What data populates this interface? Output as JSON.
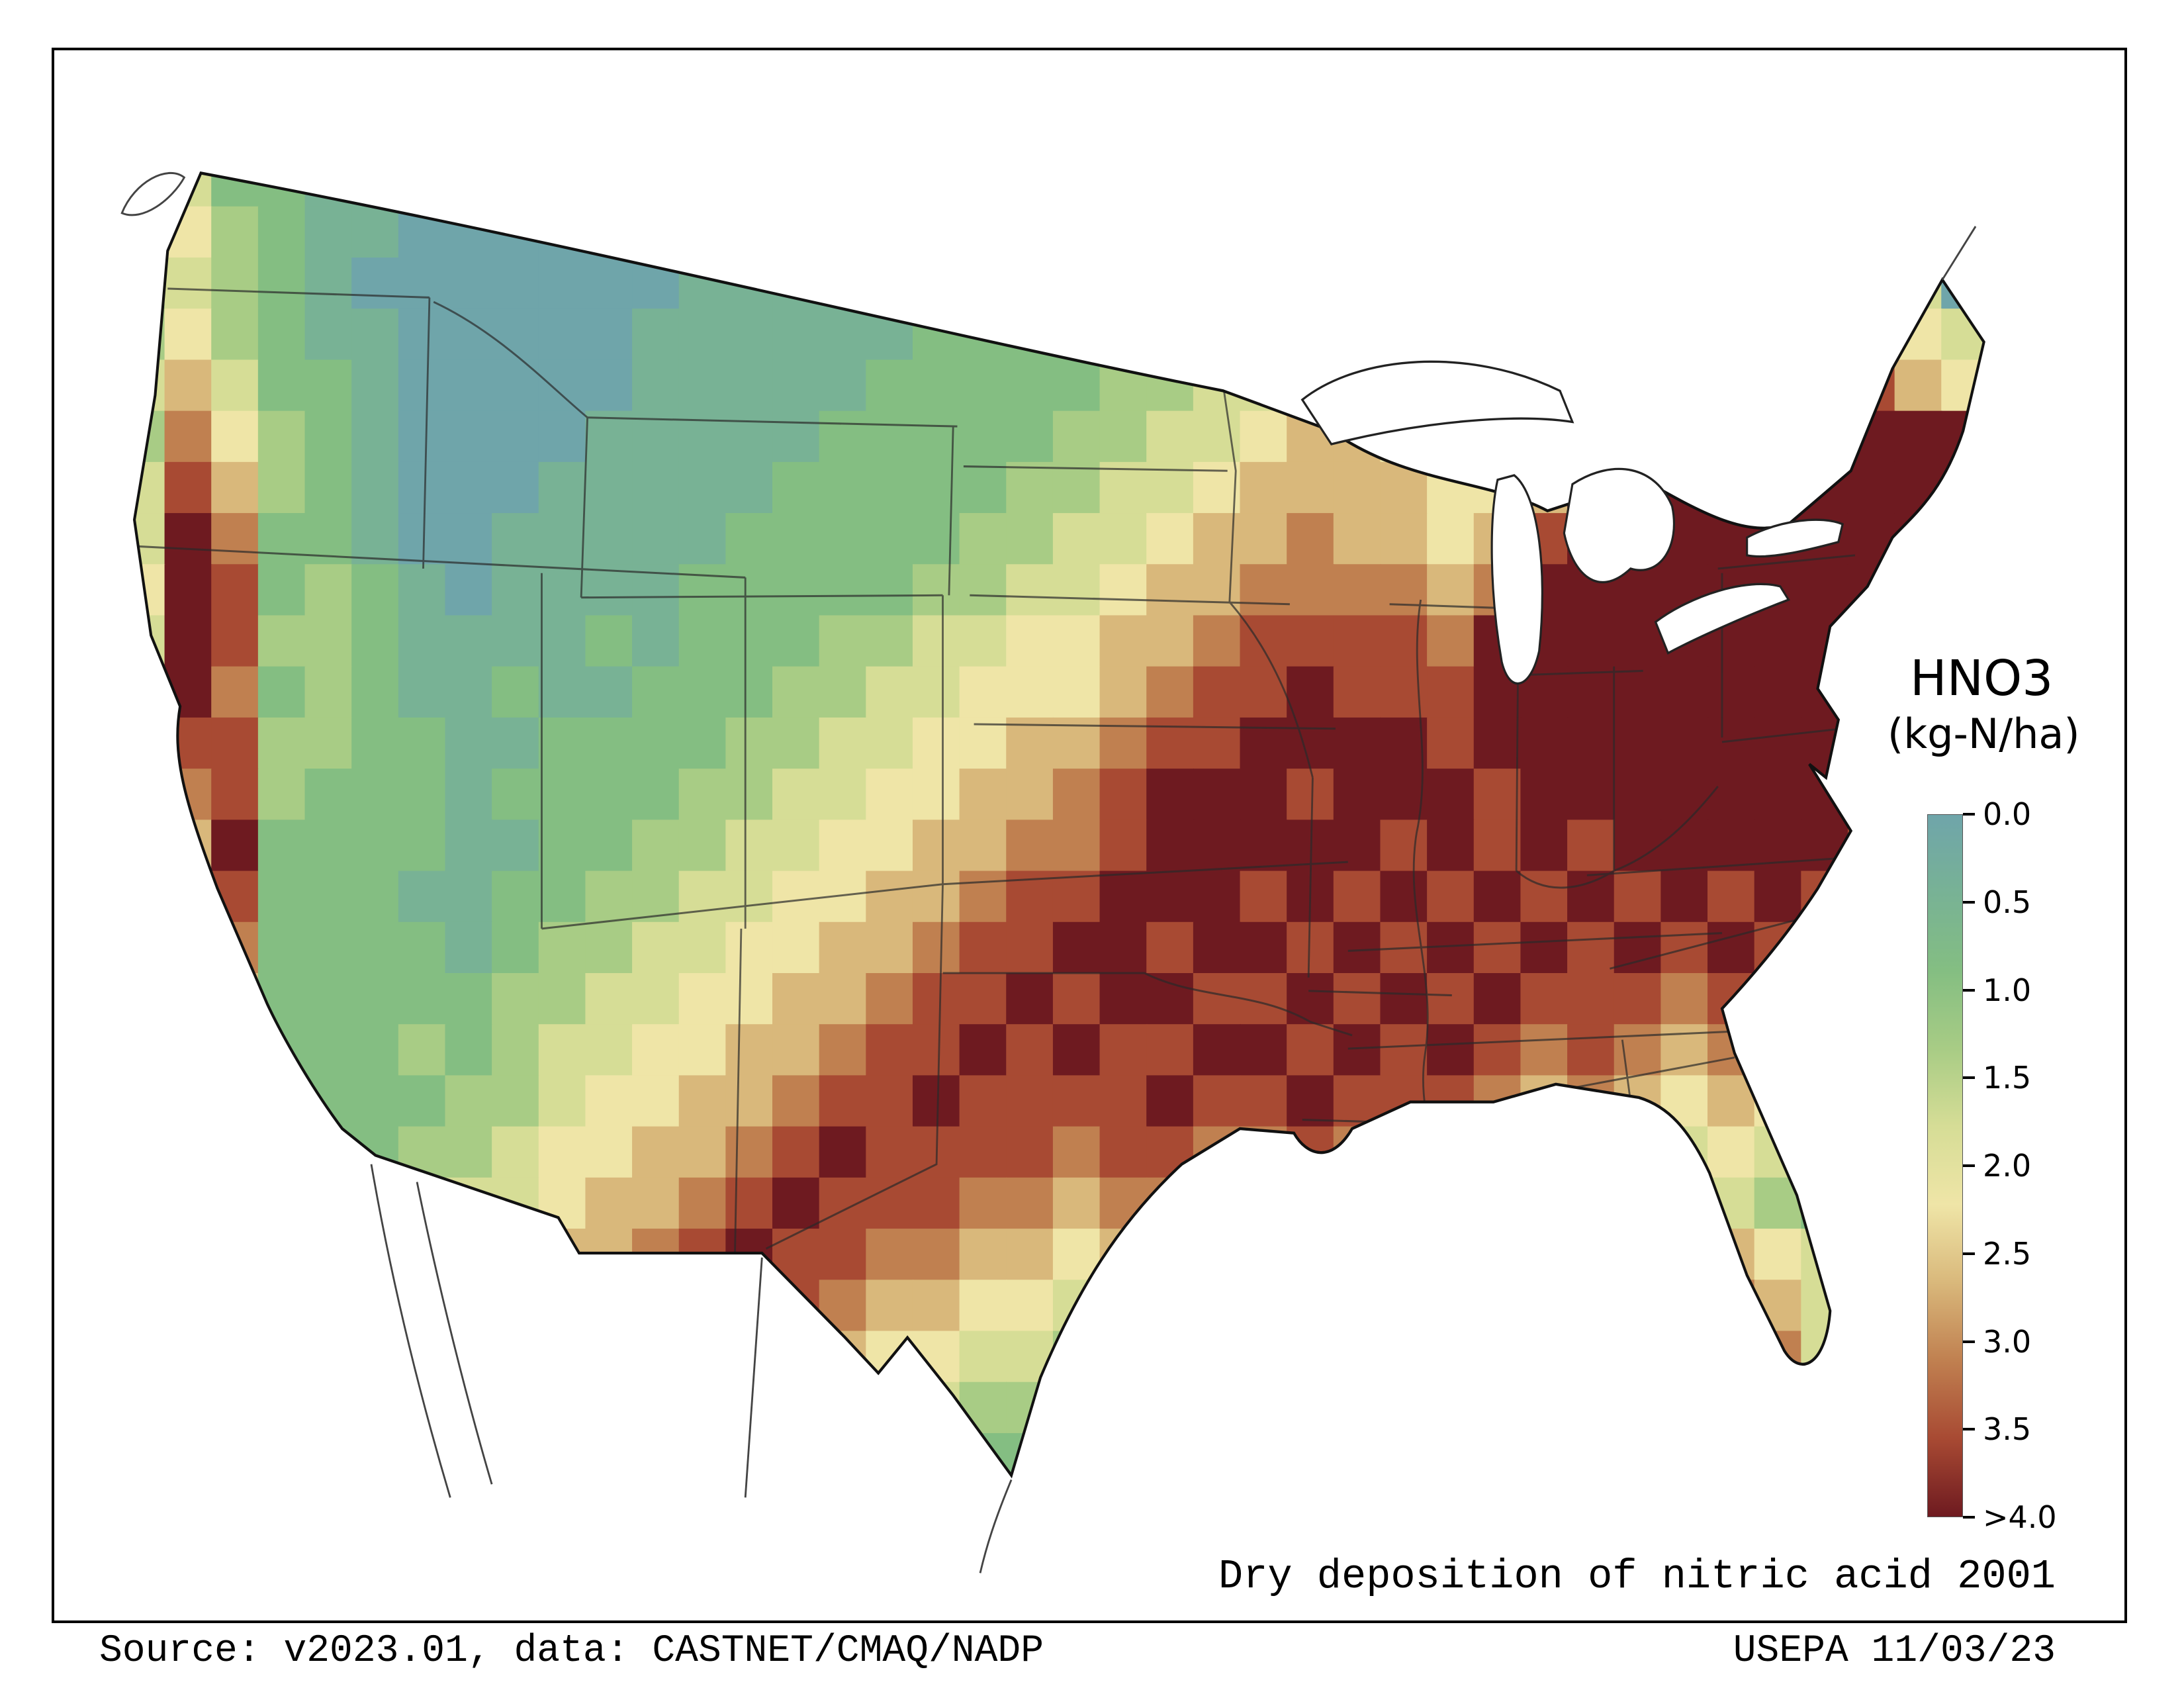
{
  "page": {
    "caption": "Dry deposition of nitric acid 2001",
    "source": "Source: v2023.01, data: CASTNET/CMAQ/NADP",
    "credit": "USEPA 11/03/23"
  },
  "legend": {
    "title": "HNO3",
    "subtitle": "(kg-N/ha)",
    "ticks": [
      "0.0",
      "0.5",
      "1.0",
      "1.5",
      "2.0",
      "2.5",
      "3.0",
      "3.5",
      ">4.0"
    ],
    "tick_values": [
      0.0,
      0.5,
      1.0,
      1.5,
      2.0,
      2.5,
      3.0,
      3.5,
      4.0
    ],
    "colors": [
      "#6FA5AA",
      "#78B295",
      "#84BE82",
      "#A8CC85",
      "#D6DD96",
      "#EFE5A7",
      "#D9B87B",
      "#C08050",
      "#A84A33",
      "#6E1A20"
    ]
  },
  "chart_data": {
    "type": "heatmap",
    "title": "Dry deposition of nitric acid 2001",
    "variable": "HNO3",
    "units": "kg-N/ha",
    "year": "2001",
    "region": "Continental United States",
    "colorbar": {
      "orientation": "vertical",
      "min_label": "0.0",
      "max_label": ">4.0",
      "tick_labels": [
        "0.0",
        "0.5",
        "1.0",
        "1.5",
        "2.0",
        "2.5",
        "3.0",
        "3.5",
        ">4.0"
      ]
    },
    "palette": [
      "#6FA5AA",
      "#78B295",
      "#84BE82",
      "#A8CC85",
      "#D6DD96",
      "#EFE5A7",
      "#D9B87B",
      "#C08050",
      "#A84A33",
      "#6E1A20"
    ],
    "origin": [
      28,
      52
    ],
    "cell": [
      22.5,
      23
    ],
    "grid": [
      "3422110001111111112222223333333444445544",
      "2532110000011111112222233664444444456544",
      "2432100000001111112222336654444445654440",
      "3532110000011111122222334456544456989654",
      "4642210000011111222223344566544569999865",
      "3753210000111112222233445665545699999999",
      "4863210001111122222334456666556999999999",
      "4972210011111222223344566766568999999999",
      "5982321011112222233445667777679999999999",
      "4983321111212223344556678888799999999999",
      "4972321121122233445556788988899999999999",
      "5883322112222334455667889999899999999999",
      "6783222122223344556678999899989999999989",
      "5692222112233445566778999998989899999878",
      "4582221122334455667889998989898989898769",
      "3472222123344556678899899898989898987659",
      "2362222233445566788989988989898887876549",
      "2252223234455667889898899898987876765439",
      "1242222334556678898888988988876765654329",
      "1232223345566789888878877877665654543219",
      "1222223445667898887767766766554543432119",
      "1122223456678988776656655655443356654319",
      "1112223456789887665545544544332246764219",
      "1112223467898776554434433433221136874119",
      "1111223578987665443323322322111125784119",
      "1111123467876554332222222221111114684119"
    ]
  }
}
